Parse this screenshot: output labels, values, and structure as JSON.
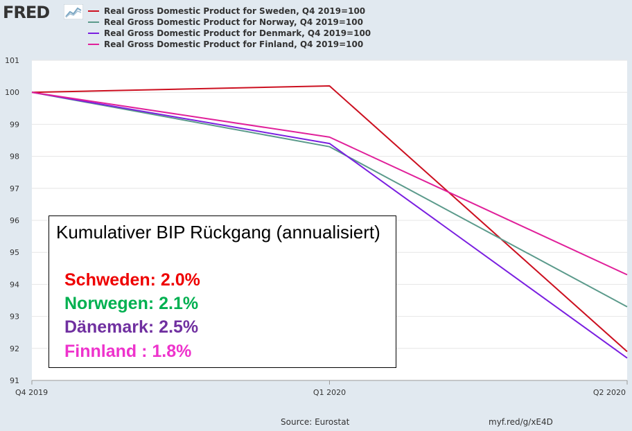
{
  "header": {
    "logo_text": "FRED",
    "logo_icon": "fred-chart-icon"
  },
  "legend": [
    {
      "label": "Real Gross Domestic Product for Sweden, Q4 2019=100",
      "color": "#cc1020"
    },
    {
      "label": "Real Gross Domestic Product for Norway, Q4 2019=100",
      "color": "#5b9a8b"
    },
    {
      "label": "Real Gross Domestic Product for Denmark, Q4 2019=100",
      "color": "#7a1fe0"
    },
    {
      "label": "Real Gross Domestic Product for Finland, Q4 2019=100",
      "color": "#e0209a"
    }
  ],
  "chart_data": {
    "type": "line",
    "categories": [
      "Q4 2019",
      "Q1 2020",
      "Q2 2020"
    ],
    "series": [
      {
        "name": "Real Gross Domestic Product for Sweden, Q4 2019=100",
        "values": [
          100,
          100.2,
          91.9
        ],
        "color": "#cc1020"
      },
      {
        "name": "Real Gross Domestic Product for Norway, Q4 2019=100",
        "values": [
          100,
          98.3,
          93.3
        ],
        "color": "#5b9a8b"
      },
      {
        "name": "Real Gross Domestic Product for Denmark, Q4 2019=100",
        "values": [
          100,
          98.4,
          91.7
        ],
        "color": "#7a1fe0"
      },
      {
        "name": "Real Gross Domestic Product for Finland, Q4 2019=100",
        "values": [
          100,
          98.6,
          94.3
        ],
        "color": "#e0209a"
      }
    ],
    "ylim": [
      91,
      101
    ],
    "yticks": [
      91,
      92,
      93,
      94,
      95,
      96,
      97,
      98,
      99,
      100,
      101
    ],
    "grid": true,
    "xlabel": "",
    "ylabel": ""
  },
  "annotation": {
    "title": "Kumulativer BIP Rückgang (annualisiert)",
    "lines": [
      {
        "text": "Schweden: 2.0%",
        "color": "#ee0000"
      },
      {
        "text": "Norwegen: 2.1%",
        "color": "#00b050"
      },
      {
        "text": "Dänemark: 2.5%",
        "color": "#7030a0"
      },
      {
        "text": "Finnland   : 1.8%",
        "color": "#ee33cc"
      }
    ]
  },
  "footer": {
    "source": "Source: Eurostat",
    "link": "myf.red/g/xE4D"
  }
}
